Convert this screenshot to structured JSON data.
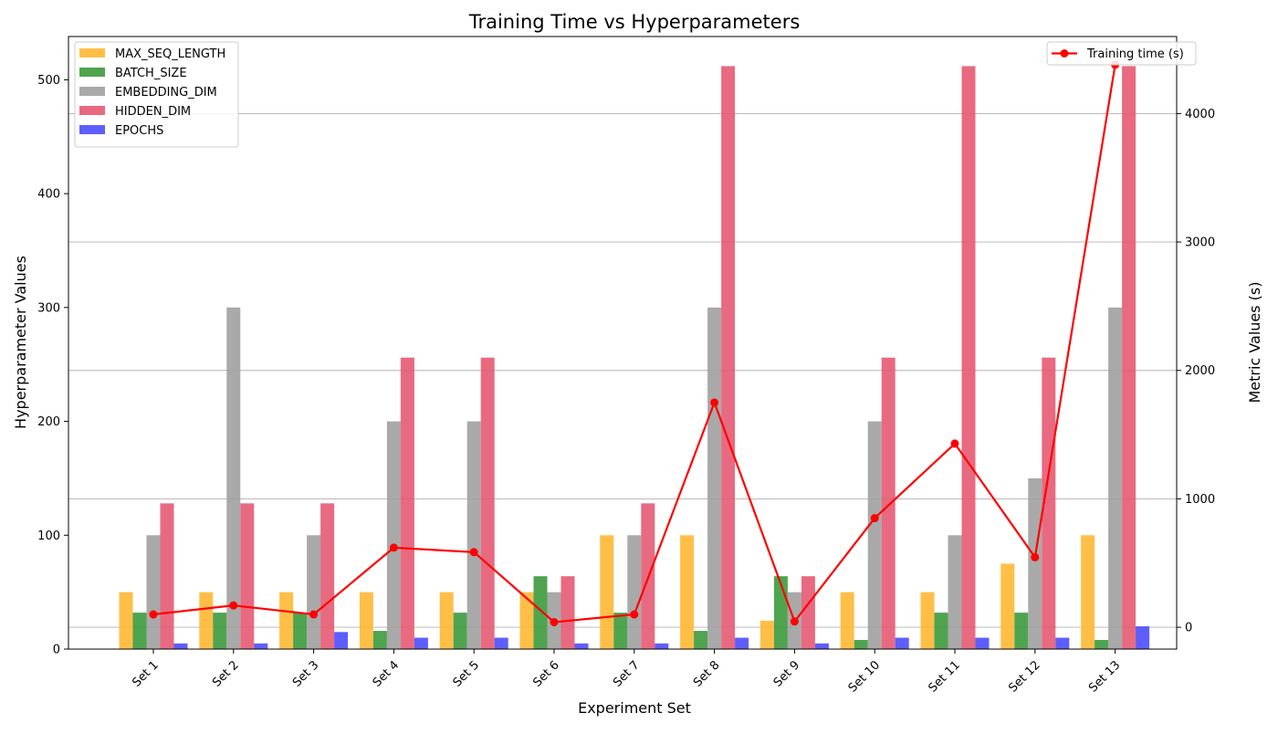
{
  "chart_data": {
    "type": "bar",
    "title": "Training Time vs Hyperparameters",
    "xlabel": "Experiment Set",
    "ylabel": "Hyperparameter Values",
    "y2label": "Metric Values (s)",
    "categories": [
      "Set 1",
      "Set 2",
      "Set 3",
      "Set 4",
      "Set 5",
      "Set 6",
      "Set 7",
      "Set 8",
      "Set 9",
      "Set 10",
      "Set 11",
      "Set 12",
      "Set 13"
    ],
    "ylim": [
      0,
      538
    ],
    "y_ticks": [
      0,
      100,
      200,
      300,
      400,
      500
    ],
    "y2lim": [
      -170,
      4600
    ],
    "y2_ticks": [
      0,
      1000,
      2000,
      3000,
      4000
    ],
    "grid": "horizontal lines at right-axis ticks",
    "series": [
      {
        "name": "MAX_SEQ_LENGTH",
        "color": "#FFB833",
        "values": [
          50,
          50,
          50,
          50,
          50,
          50,
          100,
          100,
          25,
          50,
          50,
          75,
          100
        ]
      },
      {
        "name": "BATCH_SIZE",
        "color": "#3C9A3C",
        "values": [
          32,
          32,
          32,
          16,
          32,
          64,
          32,
          16,
          64,
          8,
          32,
          32,
          8
        ]
      },
      {
        "name": "EMBEDDING_DIM",
        "color": "#A0A0A0",
        "values": [
          100,
          300,
          100,
          200,
          200,
          50,
          100,
          300,
          50,
          200,
          100,
          150,
          300
        ]
      },
      {
        "name": "HIDDEN_DIM",
        "color": "#E55A72",
        "values": [
          128,
          128,
          128,
          256,
          256,
          64,
          128,
          512,
          64,
          256,
          512,
          256,
          512
        ]
      },
      {
        "name": "EPOCHS",
        "color": "#4C4CFF",
        "values": [
          5,
          5,
          15,
          10,
          10,
          5,
          5,
          10,
          5,
          10,
          10,
          10,
          20
        ]
      }
    ],
    "line_series": {
      "name": "Training time (s)",
      "color": "#FF0000",
      "axis": "right",
      "values": [
        100,
        170,
        100,
        620,
        585,
        40,
        100,
        1750,
        45,
        850,
        1430,
        545,
        4380
      ]
    },
    "legend_left_position": "top-left",
    "legend_right_position": "top-right"
  }
}
